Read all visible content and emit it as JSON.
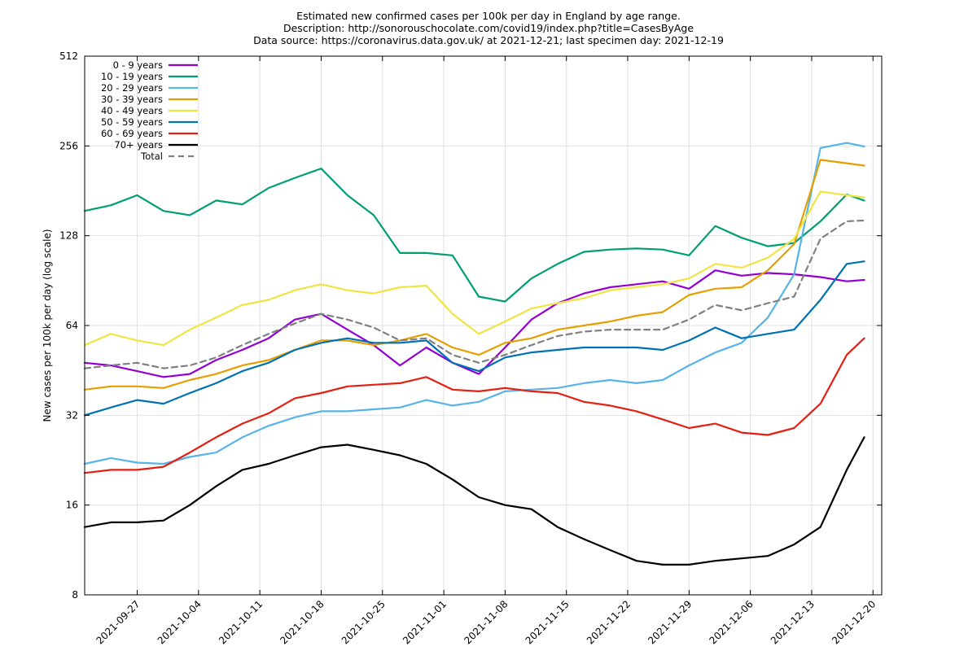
{
  "chart_data": {
    "type": "line",
    "title": [
      "Estimated new confirmed cases per 100k per day in England by age range.",
      "Description: http://sonorouschocolate.com/covid19/index.php?title=CasesByAge",
      "Data source: https://coronavirus.data.gov.uk/ at 2021-12-21; last specimen day: 2021-12-19"
    ],
    "xlabel": "",
    "ylabel": "New cases per 100k per day (log scale)",
    "y_scale": "log",
    "ylim": [
      8,
      512
    ],
    "y_ticks": [
      "8",
      "16",
      "32",
      "64",
      "128",
      "256",
      "512"
    ],
    "x_range": [
      "2021-09-21",
      "2021-12-21"
    ],
    "x_ticks": [
      "2021-09-27",
      "2021-10-04",
      "2021-10-11",
      "2021-10-18",
      "2021-10-25",
      "2021-11-01",
      "2021-11-08",
      "2021-11-15",
      "2021-11-22",
      "2021-11-29",
      "2021-12-06",
      "2021-12-13",
      "2021-12-20"
    ],
    "grid": true,
    "legend_position": "top-left",
    "x": [
      "2021-09-21",
      "2021-09-24",
      "2021-09-27",
      "2021-09-30",
      "2021-10-03",
      "2021-10-06",
      "2021-10-09",
      "2021-10-12",
      "2021-10-15",
      "2021-10-18",
      "2021-10-21",
      "2021-10-24",
      "2021-10-27",
      "2021-10-30",
      "2021-11-02",
      "2021-11-05",
      "2021-11-08",
      "2021-11-11",
      "2021-11-14",
      "2021-11-17",
      "2021-11-20",
      "2021-11-23",
      "2021-11-26",
      "2021-11-29",
      "2021-12-02",
      "2021-12-05",
      "2021-12-08",
      "2021-12-11",
      "2021-12-14",
      "2021-12-17",
      "2021-12-19"
    ],
    "series": [
      {
        "name": "0 - 9 years",
        "color": "#9400d3",
        "dash": false,
        "values": [
          48,
          47,
          45,
          43,
          44,
          49,
          53,
          58,
          67,
          70,
          62,
          55,
          47,
          54,
          48,
          44,
          54,
          67,
          76,
          82,
          86,
          88,
          90,
          85,
          98,
          94,
          96,
          95,
          93,
          90,
          91
        ]
      },
      {
        "name": "10 - 19 years",
        "color": "#009e73",
        "dash": false,
        "values": [
          155,
          162,
          175,
          155,
          150,
          168,
          163,
          185,
          200,
          215,
          175,
          150,
          112,
          112,
          110,
          80,
          77,
          92,
          103,
          113,
          115,
          116,
          115,
          110,
          138,
          126,
          118,
          121,
          143,
          176,
          168
        ]
      },
      {
        "name": "20 - 29 years",
        "color": "#56b4e9",
        "dash": false,
        "values": [
          22,
          23,
          22.2,
          22,
          23.2,
          24,
          27,
          29.5,
          31.5,
          33,
          33,
          33.5,
          34,
          36,
          34.5,
          35.5,
          38.5,
          39,
          39.5,
          41,
          42,
          41,
          42,
          47,
          52,
          56,
          68,
          95,
          252,
          262,
          255
        ]
      },
      {
        "name": "30 - 39 years",
        "color": "#e69f00",
        "dash": false,
        "values": [
          39,
          40,
          40,
          39.5,
          42,
          44,
          47,
          49,
          53,
          57,
          57,
          55,
          57,
          60,
          54,
          51,
          56,
          58,
          62,
          64,
          66,
          69,
          71,
          81,
          85,
          86,
          98,
          120,
          230,
          224,
          220
        ]
      },
      {
        "name": "40 - 49 years",
        "color": "#f0e442",
        "dash": false,
        "values": [
          55,
          60,
          57,
          55,
          62,
          68,
          75,
          78,
          84,
          88,
          84,
          82,
          86,
          87,
          70,
          60,
          66,
          73,
          76,
          79,
          84,
          86,
          88,
          92,
          103,
          100,
          108,
          125,
          180,
          175,
          172
        ]
      },
      {
        "name": "50 - 59 years",
        "color": "#0072b2",
        "dash": false,
        "values": [
          32,
          34,
          36,
          35,
          38,
          41,
          45,
          48,
          53,
          56,
          58,
          56,
          56,
          57,
          48,
          45,
          50,
          52,
          53,
          54,
          54,
          54,
          53,
          57,
          63,
          58,
          60,
          62,
          78,
          103,
          105
        ]
      },
      {
        "name": "60 - 69 years",
        "color": "#e51e10",
        "dash": false,
        "values": [
          20.5,
          21,
          21,
          21.5,
          24,
          27,
          30,
          32.5,
          36.5,
          38,
          40,
          40.5,
          41,
          43,
          39,
          38.5,
          39.5,
          38.5,
          38,
          35.5,
          34.5,
          33,
          31,
          29,
          30,
          28,
          27.5,
          29,
          35,
          51,
          58
        ]
      },
      {
        "name": "70+ years",
        "color": "#000000",
        "dash": false,
        "values": [
          13.5,
          14,
          14,
          14.2,
          16,
          18.5,
          21,
          22,
          23.5,
          25,
          25.5,
          24.5,
          23.5,
          22,
          19.5,
          17,
          16,
          15.5,
          13.5,
          12.3,
          11.3,
          10.4,
          10.1,
          10.1,
          10.4,
          10.6,
          10.8,
          11.8,
          13.5,
          21,
          27
        ]
      },
      {
        "name": "Total",
        "color": "#808080",
        "dash": true,
        "values": [
          46,
          47,
          48,
          46,
          47,
          50,
          55,
          60,
          65,
          70,
          67,
          63,
          57,
          58,
          51,
          48,
          51,
          55,
          59,
          61,
          62,
          62,
          62,
          67,
          75,
          72,
          76,
          80,
          125,
          143,
          144
        ]
      }
    ]
  }
}
